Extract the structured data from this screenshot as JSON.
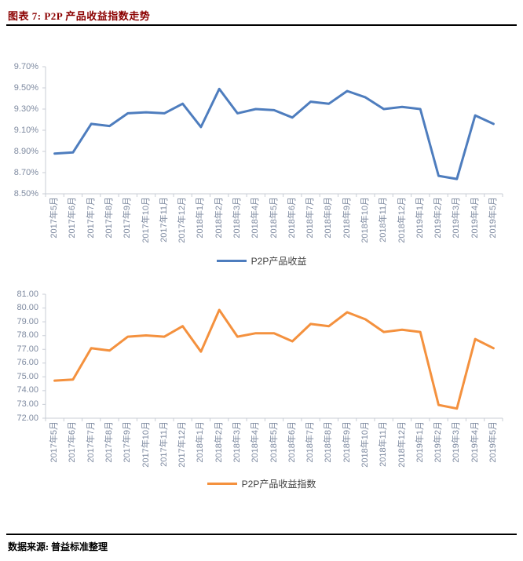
{
  "header": {
    "title": "图表 7: P2P 产品收益指数走势"
  },
  "footer": {
    "source": "数据来源: 普益标准整理"
  },
  "colors": {
    "title_red": "#8B0000",
    "rule_black": "#000000",
    "axis_gray": "#C8CDD6",
    "tick_label_gray": "#7E8AA0",
    "legend_text": "#3F3F3F",
    "series_blue": "#4E7DBE",
    "series_orange": "#F4913E"
  },
  "chart_data": [
    {
      "type": "line",
      "title": "",
      "legend": "P2P产品收益",
      "legend_position": "bottom",
      "grid": false,
      "line_color": "#4E7DBE",
      "ylim": [
        8.5,
        9.7
      ],
      "ytick_step": 0.2,
      "ytick_labels": [
        "9.70%",
        "9.50%",
        "9.30%",
        "9.10%",
        "8.90%",
        "8.70%",
        "8.50%"
      ],
      "categories": [
        "2017年5月",
        "2017年6月",
        "2017年7月",
        "2017年8月",
        "2017年9月",
        "2017年10月",
        "2017年11月",
        "2017年12月",
        "2018年1月",
        "2018年2月",
        "2018年3月",
        "2018年4月",
        "2018年5月",
        "2018年6月",
        "2018年7月",
        "2018年8月",
        "2018年9月",
        "2018年10月",
        "2018年11月",
        "2018年12月",
        "2019年1月",
        "2019年2月",
        "2019年3月",
        "2019年4月",
        "2019年5月"
      ],
      "values": [
        8.88,
        8.89,
        9.16,
        9.14,
        9.26,
        9.27,
        9.26,
        9.35,
        9.13,
        9.49,
        9.26,
        9.3,
        9.29,
        9.22,
        9.37,
        9.35,
        9.47,
        9.41,
        9.3,
        9.32,
        9.3,
        8.67,
        8.64,
        9.24,
        9.16
      ]
    },
    {
      "type": "line",
      "title": "",
      "legend": "P2P产品收益指数",
      "legend_position": "bottom",
      "grid": false,
      "line_color": "#F4913E",
      "ylim": [
        72.0,
        81.0
      ],
      "ytick_step": 1.0,
      "ytick_labels": [
        "81.00",
        "80.00",
        "79.00",
        "78.00",
        "77.00",
        "76.00",
        "75.00",
        "74.00",
        "73.00",
        "72.00"
      ],
      "categories": [
        "2017年5月",
        "2017年6月",
        "2017年7月",
        "2017年8月",
        "2017年9月",
        "2017年10月",
        "2017年11月",
        "2017年12月",
        "2018年1月",
        "2018年2月",
        "2018年3月",
        "2018年4月",
        "2018年5月",
        "2018年6月",
        "2018年7月",
        "2018年8月",
        "2018年9月",
        "2018年10月",
        "2018年11月",
        "2018年12月",
        "2019年1月",
        "2019年2月",
        "2019年3月",
        "2019年4月",
        "2019年5月"
      ],
      "values": [
        74.73,
        74.81,
        77.08,
        76.91,
        77.92,
        78.01,
        77.92,
        78.68,
        76.83,
        79.86,
        77.92,
        78.17,
        78.17,
        77.58,
        78.84,
        78.68,
        79.69,
        79.18,
        78.26,
        78.42,
        78.26,
        72.96,
        72.7,
        77.75,
        77.08
      ]
    }
  ]
}
